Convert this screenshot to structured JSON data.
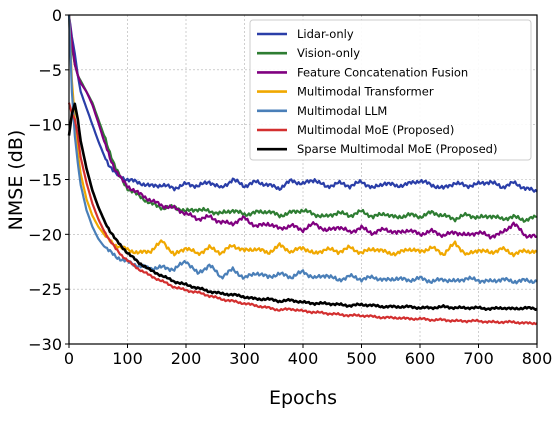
{
  "chart_data": {
    "type": "line",
    "xlabel": "Epochs",
    "ylabel": "NMSE (dB)",
    "xlim": [
      0,
      800
    ],
    "ylim": [
      -30,
      0
    ],
    "xticks": [
      0,
      100,
      200,
      300,
      400,
      500,
      600,
      700,
      800
    ],
    "yticks": [
      0,
      -5,
      -10,
      -15,
      -20,
      -25,
      -30
    ],
    "xtick_labels": [
      "0",
      "100",
      "200",
      "300",
      "400",
      "500",
      "600",
      "700",
      "800"
    ],
    "ytick_labels": [
      "0",
      "−5",
      "−10",
      "−15",
      "−20",
      "−25",
      "−30"
    ],
    "grid": true,
    "legend_position": "top-right",
    "series": [
      {
        "name": "Lidar-only",
        "color": "#2a3ea8",
        "x": [
          0,
          5,
          10,
          15,
          20,
          30,
          40,
          50,
          60,
          70,
          80,
          90,
          100,
          120,
          140,
          160,
          180,
          200,
          220,
          240,
          260,
          280,
          300,
          320,
          340,
          360,
          380,
          400,
          420,
          440,
          460,
          480,
          500,
          520,
          540,
          560,
          580,
          600,
          620,
          640,
          660,
          680,
          700,
          720,
          740,
          760,
          780,
          800
        ],
        "y": [
          0,
          -2,
          -3.5,
          -5.5,
          -7,
          -8.5,
          -10,
          -11.5,
          -12.8,
          -13.8,
          -14.5,
          -14.8,
          -15.0,
          -15.3,
          -15.6,
          -15.5,
          -15.8,
          -15.4,
          -15.6,
          -15.2,
          -15.8,
          -15.0,
          -15.6,
          -15.2,
          -15.5,
          -15.8,
          -15.1,
          -15.4,
          -15.0,
          -15.7,
          -15.3,
          -15.6,
          -15.2,
          -15.8,
          -15.3,
          -15.6,
          -15.4,
          -15.1,
          -15.5,
          -15.8,
          -15.3,
          -15.6,
          -15.4,
          -15.2,
          -15.7,
          -15.3,
          -15.8,
          -16.1
        ]
      },
      {
        "name": "Vision-only",
        "color": "#2e7d32",
        "x": [
          0,
          5,
          10,
          15,
          20,
          30,
          40,
          50,
          60,
          70,
          80,
          90,
          100,
          120,
          140,
          160,
          180,
          200,
          220,
          240,
          260,
          280,
          300,
          320,
          340,
          360,
          380,
          400,
          420,
          440,
          460,
          480,
          500,
          520,
          540,
          560,
          580,
          600,
          620,
          640,
          660,
          680,
          700,
          720,
          740,
          760,
          780,
          800
        ],
        "y": [
          0,
          -3,
          -4.5,
          -5.5,
          -6,
          -7,
          -8,
          -9.5,
          -11,
          -12.5,
          -14,
          -15,
          -15.8,
          -16.5,
          -17.2,
          -17.6,
          -17.5,
          -17.9,
          -17.7,
          -17.9,
          -18.1,
          -17.8,
          -18.2,
          -18.0,
          -17.9,
          -18.3,
          -18.0,
          -17.8,
          -18.2,
          -18.4,
          -18.0,
          -18.3,
          -17.9,
          -18.4,
          -18.1,
          -18.5,
          -18.2,
          -18.4,
          -18.0,
          -18.3,
          -18.6,
          -18.2,
          -18.5,
          -18.3,
          -18.6,
          -18.4,
          -18.7,
          -18.4
        ]
      },
      {
        "name": "Feature Concatenation Fusion",
        "color": "#800080",
        "x": [
          0,
          5,
          10,
          15,
          20,
          30,
          40,
          50,
          60,
          70,
          80,
          90,
          100,
          120,
          140,
          160,
          180,
          200,
          220,
          240,
          260,
          280,
          300,
          320,
          340,
          360,
          380,
          400,
          420,
          440,
          460,
          480,
          500,
          520,
          540,
          560,
          580,
          600,
          620,
          640,
          660,
          680,
          700,
          720,
          740,
          760,
          780,
          800
        ],
        "y": [
          0,
          -2.5,
          -4.5,
          -5.5,
          -6.2,
          -7.0,
          -8.2,
          -9.8,
          -11.5,
          -13.0,
          -14.2,
          -15.0,
          -15.6,
          -16.3,
          -16.9,
          -17.4,
          -17.6,
          -18.1,
          -18.6,
          -18.4,
          -18.9,
          -19.0,
          -18.5,
          -19.3,
          -19.0,
          -19.5,
          -19.2,
          -19.6,
          -19.0,
          -19.7,
          -19.3,
          -19.8,
          -19.4,
          -19.9,
          -19.5,
          -19.9,
          -19.6,
          -20.0,
          -19.7,
          -20.1,
          -19.8,
          -20.1,
          -19.8,
          -20.2,
          -19.9,
          -19.0,
          -20.1,
          -20.2
        ]
      },
      {
        "name": "Multimodal Transformer",
        "color": "#f0a800",
        "x": [
          0,
          5,
          10,
          15,
          20,
          30,
          40,
          50,
          60,
          70,
          80,
          90,
          100,
          120,
          140,
          160,
          180,
          200,
          220,
          240,
          260,
          280,
          300,
          320,
          340,
          360,
          380,
          400,
          420,
          440,
          460,
          480,
          500,
          520,
          540,
          560,
          580,
          600,
          620,
          640,
          660,
          680,
          700,
          720,
          740,
          760,
          780,
          800
        ],
        "y": [
          0,
          -6,
          -9.5,
          -12.5,
          -14.5,
          -16.8,
          -18.3,
          -19.3,
          -20.0,
          -20.6,
          -21.0,
          -21.2,
          -21.4,
          -21.7,
          -21.5,
          -20.6,
          -21.9,
          -21.2,
          -21.8,
          -21.2,
          -21.7,
          -21.0,
          -21.5,
          -21.3,
          -21.7,
          -21.0,
          -21.6,
          -21.2,
          -21.8,
          -21.3,
          -21.6,
          -21.2,
          -21.7,
          -21.3,
          -21.6,
          -21.8,
          -21.3,
          -21.6,
          -21.2,
          -21.8,
          -20.8,
          -21.9,
          -21.4,
          -21.7,
          -21.3,
          -21.8,
          -21.5,
          -21.6
        ]
      },
      {
        "name": "Multimodal LLM",
        "color": "#4a7fb8",
        "x": [
          0,
          5,
          10,
          15,
          20,
          30,
          40,
          50,
          60,
          70,
          80,
          90,
          100,
          120,
          140,
          160,
          180,
          200,
          220,
          240,
          260,
          280,
          300,
          320,
          340,
          360,
          380,
          400,
          420,
          440,
          460,
          480,
          500,
          520,
          540,
          560,
          580,
          600,
          620,
          640,
          660,
          680,
          700,
          720,
          740,
          760,
          780,
          800
        ],
        "y": [
          0,
          -7,
          -11,
          -13.5,
          -15.5,
          -17.8,
          -19.3,
          -20.4,
          -21.1,
          -21.6,
          -22.0,
          -22.3,
          -22.5,
          -22.9,
          -23.1,
          -23.0,
          -23.2,
          -22.4,
          -23.6,
          -22.8,
          -23.9,
          -23.2,
          -24.0,
          -23.5,
          -23.9,
          -23.6,
          -23.9,
          -23.4,
          -24.0,
          -23.7,
          -24.2,
          -23.8,
          -24.1,
          -23.9,
          -24.2,
          -24.0,
          -24.2,
          -24.0,
          -24.3,
          -24.1,
          -24.3,
          -24.0,
          -24.2,
          -24.3,
          -24.1,
          -24.3,
          -24.2,
          -24.3
        ]
      },
      {
        "name": "Multimodal MoE (Proposed)",
        "color": "#d32f2f",
        "x": [
          0,
          5,
          10,
          15,
          20,
          30,
          40,
          50,
          60,
          70,
          80,
          90,
          100,
          120,
          140,
          160,
          180,
          200,
          220,
          240,
          260,
          280,
          300,
          320,
          340,
          360,
          380,
          400,
          420,
          440,
          460,
          480,
          500,
          520,
          540,
          560,
          580,
          600,
          620,
          640,
          660,
          680,
          700,
          720,
          740,
          760,
          780,
          800
        ],
        "y": [
          -8,
          -9,
          -9.5,
          -11,
          -13,
          -15.3,
          -17.2,
          -18.6,
          -19.7,
          -20.6,
          -21.3,
          -21.9,
          -22.4,
          -23.2,
          -23.8,
          -24.3,
          -24.8,
          -25.1,
          -25.3,
          -25.6,
          -25.9,
          -26.1,
          -26.3,
          -26.5,
          -26.7,
          -26.9,
          -26.8,
          -27.0,
          -27.1,
          -27.2,
          -27.3,
          -27.4,
          -27.4,
          -27.5,
          -27.6,
          -27.6,
          -27.7,
          -27.7,
          -27.8,
          -27.8,
          -27.9,
          -27.9,
          -27.9,
          -28.0,
          -28.0,
          -28.0,
          -28.1,
          -28.1
        ]
      },
      {
        "name": "Sparse Multimodal MoE (Proposed)",
        "color": "#000000",
        "x": [
          0,
          5,
          10,
          15,
          20,
          30,
          40,
          50,
          60,
          70,
          80,
          90,
          100,
          120,
          140,
          160,
          180,
          200,
          220,
          240,
          260,
          280,
          300,
          320,
          340,
          360,
          380,
          400,
          420,
          440,
          460,
          480,
          500,
          520,
          540,
          560,
          580,
          600,
          620,
          640,
          660,
          680,
          700,
          720,
          740,
          760,
          780,
          800
        ],
        "y": [
          -11,
          -9,
          -8.1,
          -9.5,
          -11.5,
          -14,
          -16,
          -17.5,
          -18.7,
          -19.7,
          -20.5,
          -21.1,
          -21.7,
          -22.6,
          -23.3,
          -23.8,
          -24.3,
          -24.6,
          -24.9,
          -25.2,
          -25.4,
          -25.5,
          -25.7,
          -25.9,
          -25.9,
          -26.1,
          -26.0,
          -26.2,
          -26.3,
          -26.3,
          -26.4,
          -26.5,
          -26.4,
          -26.5,
          -26.6,
          -26.6,
          -26.6,
          -26.7,
          -26.7,
          -26.6,
          -26.7,
          -26.7,
          -26.7,
          -26.8,
          -26.7,
          -26.8,
          -26.7,
          -26.8
        ]
      }
    ]
  }
}
